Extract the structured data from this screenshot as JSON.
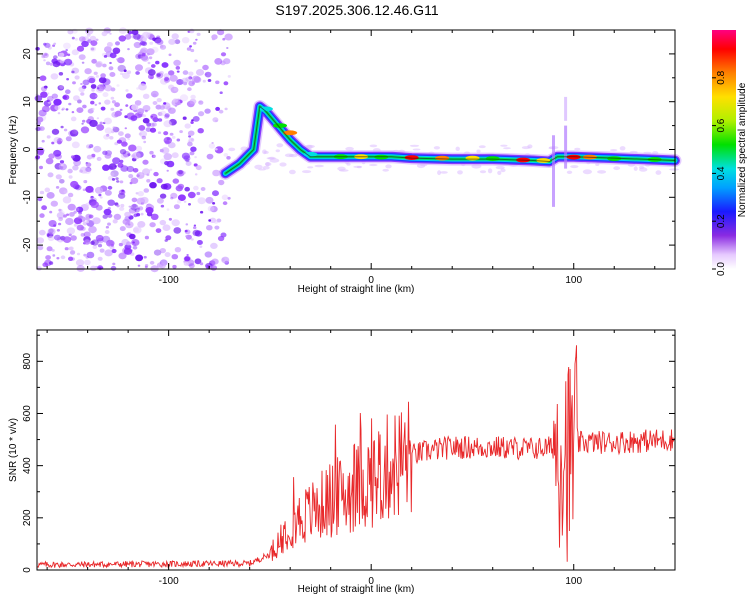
{
  "title": "S197.2025.306.12.46.G11",
  "colors": {
    "snr_line": "#e8282a",
    "scatter_purple": "#7a1fff",
    "scatter_light": "#d9b8ff"
  },
  "chart_data": [
    {
      "type": "heatmap",
      "name": "spectrogram",
      "xlabel": "Height of straight line (km)",
      "ylabel": "Frequency (Hz)",
      "xlim": [
        -165,
        150
      ],
      "ylim": [
        -25,
        25
      ],
      "x_ticks": [
        -100,
        0,
        100
      ],
      "x_tick_labels": [
        "-100",
        "0",
        "100"
      ],
      "y_ticks": [
        -20,
        -10,
        0,
        10,
        20
      ],
      "y_tick_labels": [
        "-20",
        "-10",
        "0",
        "10",
        "20"
      ],
      "ridge": {
        "x": [
          -72,
          -65,
          -58,
          -55,
          -52,
          -48,
          -44,
          -40,
          -35,
          -30,
          -25,
          -20,
          -10,
          0,
          10,
          20,
          40,
          60,
          80,
          88,
          92,
          100,
          120,
          150
        ],
        "freq": [
          -5,
          -3,
          0,
          9,
          8,
          6,
          4,
          2,
          0,
          -1.5,
          -1.5,
          -1.5,
          -1.5,
          -1.5,
          -1.5,
          -1.8,
          -2,
          -2,
          -2.3,
          -2.5,
          -1.5,
          -1.5,
          -1.8,
          -2.3
        ]
      },
      "colorbar": {
        "label": "Normalized spectral amplitude",
        "range": [
          0,
          1
        ],
        "ticks": [
          "0.0",
          "0.2",
          "0.4",
          "0.6",
          "0.8"
        ]
      }
    },
    {
      "type": "line",
      "name": "snr",
      "xlabel": "Height of straight line (km)",
      "ylabel": "SNR (10 * v/v)",
      "xlim": [
        -165,
        150
      ],
      "ylim": [
        0,
        920
      ],
      "x_ticks": [
        -100,
        0,
        100
      ],
      "x_tick_labels": [
        "-100",
        "0",
        "100"
      ],
      "y_ticks": [
        0,
        200,
        400,
        600,
        800
      ],
      "y_tick_labels": [
        "0",
        "200",
        "400",
        "600",
        "800"
      ],
      "trend": {
        "x": [
          -165,
          -60,
          -50,
          -40,
          -30,
          -20,
          -10,
          0,
          10,
          20,
          30,
          40,
          60,
          80,
          90,
          95,
          98,
          100,
          105,
          120,
          150
        ],
        "snr": [
          20,
          25,
          60,
          180,
          220,
          270,
          300,
          350,
          400,
          440,
          460,
          470,
          470,
          465,
          470,
          520,
          400,
          480,
          490,
          490,
          500
        ]
      }
    }
  ]
}
